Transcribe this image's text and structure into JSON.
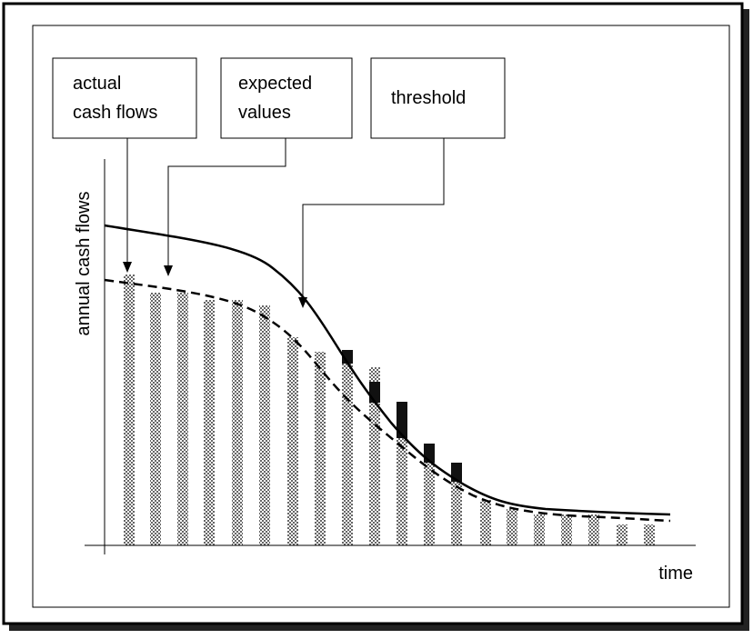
{
  "labels": {
    "actual": [
      "actual",
      "cash flows"
    ],
    "expected": [
      "expected",
      "values"
    ],
    "threshold": "threshold"
  },
  "axes": {
    "y": "annual cash flows",
    "x": "time"
  }
}
